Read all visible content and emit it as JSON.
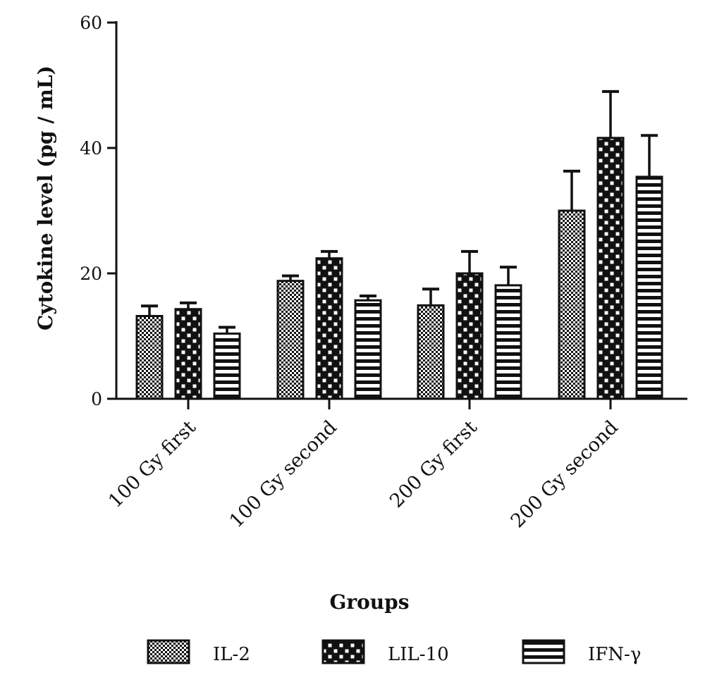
{
  "chart_data": {
    "type": "bar",
    "title": "",
    "xlabel": "Groups",
    "ylabel": "Cytokine level (pg / mL)",
    "ylim": [
      0,
      60
    ],
    "yticks": [
      0,
      20,
      40,
      60
    ],
    "ytick_labels": [
      "0",
      "20",
      "40",
      "60"
    ],
    "categories": [
      "100 Gy first",
      "100 Gy second",
      "200 Gy first",
      "200 Gy second"
    ],
    "series": [
      {
        "name": "IL-2",
        "pattern": "fine-checker",
        "values": [
          13.2,
          18.8,
          14.9,
          30.0
        ],
        "errors": [
          1.6,
          0.8,
          2.6,
          6.3
        ]
      },
      {
        "name": "LIL-10",
        "pattern": "coarse-checker",
        "values": [
          14.3,
          22.4,
          20.0,
          41.6
        ],
        "errors": [
          1.0,
          1.1,
          3.5,
          7.4
        ]
      },
      {
        "name": "IFN-γ",
        "pattern": "horizontal-stripes",
        "values": [
          10.4,
          15.7,
          18.1,
          35.4
        ],
        "errors": [
          1.0,
          0.7,
          2.9,
          6.6
        ]
      }
    ],
    "error_bars": "upper",
    "grid": false,
    "legend_position": "bottom",
    "bar_color": "#111111",
    "background_color": "#ffffff"
  }
}
